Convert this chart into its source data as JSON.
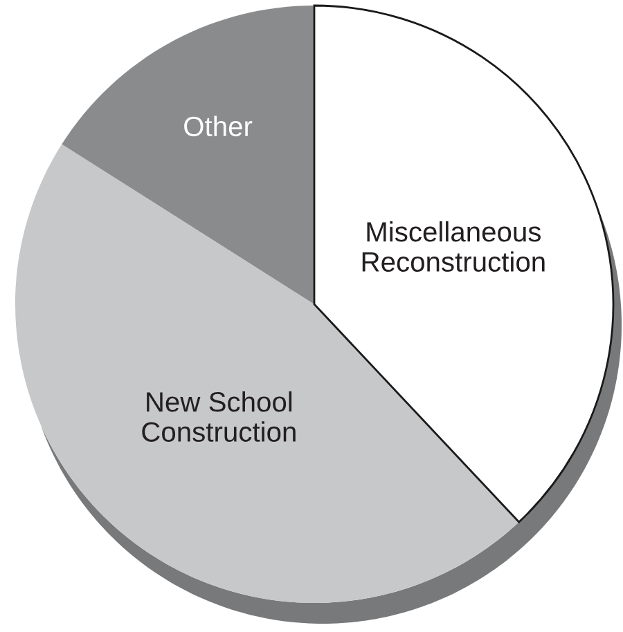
{
  "chart_data": {
    "type": "pie",
    "categories": [
      "Miscellaneous Reconstruction",
      "New School Construction",
      "Other"
    ],
    "values": [
      38,
      46,
      16
    ],
    "colors": [
      "#ffffff",
      "#c7c8ca",
      "#8a8b8d"
    ]
  }
}
